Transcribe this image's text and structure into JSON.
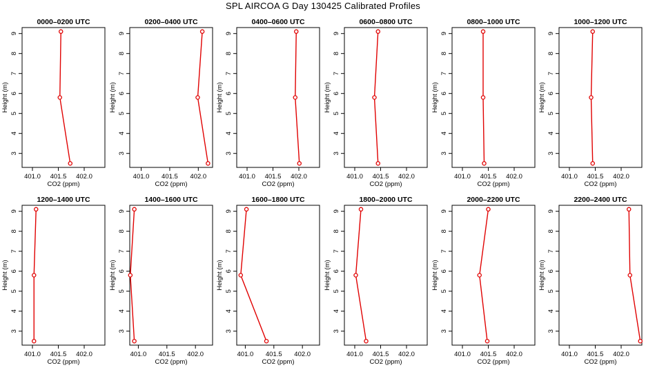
{
  "title": "SPL AIRCOA G  Day 130425  Calibrated Profiles",
  "style": {
    "line_color": "#e00000",
    "axis_color": "#000000"
  },
  "chart_data": [
    {
      "type": "line",
      "title": "0000–0200 UTC",
      "xlabel": "CO2 (ppm)",
      "ylabel": "Height (m)",
      "xlim": [
        400.8,
        402.4
      ],
      "ylim": [
        2.3,
        9.3
      ],
      "xticks": [
        "401.0",
        "401.5",
        "402.0"
      ],
      "yticks": [
        "3",
        "4",
        "5",
        "6",
        "7",
        "8",
        "9"
      ],
      "points": [
        {
          "x": 401.55,
          "y": 9.1
        },
        {
          "x": 401.53,
          "y": 5.8
        },
        {
          "x": 401.73,
          "y": 2.5
        }
      ]
    },
    {
      "type": "line",
      "title": "0200–0400 UTC",
      "xlabel": "CO2 (ppm)",
      "ylabel": "Height (m)",
      "xlim": [
        400.8,
        402.25
      ],
      "ylim": [
        2.3,
        9.3
      ],
      "xticks": [
        "401.0",
        "401.5",
        "402.0"
      ],
      "yticks": [
        "3",
        "4",
        "5",
        "6",
        "7",
        "8",
        "9"
      ],
      "points": [
        {
          "x": 402.07,
          "y": 9.1
        },
        {
          "x": 401.99,
          "y": 5.8
        },
        {
          "x": 402.17,
          "y": 2.5
        }
      ]
    },
    {
      "type": "line",
      "title": "0400–0600 UTC",
      "xlabel": "CO2 (ppm)",
      "ylabel": "Height (m)",
      "xlim": [
        400.8,
        402.4
      ],
      "ylim": [
        2.3,
        9.3
      ],
      "xticks": [
        "401.0",
        "401.5",
        "402.0"
      ],
      "yticks": [
        "3",
        "4",
        "5",
        "6",
        "7",
        "8",
        "9"
      ],
      "points": [
        {
          "x": 401.95,
          "y": 9.1
        },
        {
          "x": 401.93,
          "y": 5.8
        },
        {
          "x": 402.01,
          "y": 2.5
        }
      ]
    },
    {
      "type": "line",
      "title": "0600–0800 UTC",
      "xlabel": "CO2 (ppm)",
      "ylabel": "Height (m)",
      "xlim": [
        400.8,
        402.4
      ],
      "ylim": [
        2.3,
        9.3
      ],
      "xticks": [
        "401.0",
        "401.5",
        "402.0"
      ],
      "yticks": [
        "3",
        "4",
        "5",
        "6",
        "7",
        "8",
        "9"
      ],
      "points": [
        {
          "x": 401.45,
          "y": 9.1
        },
        {
          "x": 401.38,
          "y": 5.8
        },
        {
          "x": 401.45,
          "y": 2.5
        }
      ]
    },
    {
      "type": "line",
      "title": "0800–1000 UTC",
      "xlabel": "CO2 (ppm)",
      "ylabel": "Height (m)",
      "xlim": [
        400.8,
        402.4
      ],
      "ylim": [
        2.3,
        9.3
      ],
      "xticks": [
        "401.0",
        "401.5",
        "402.0"
      ],
      "yticks": [
        "3",
        "4",
        "5",
        "6",
        "7",
        "8",
        "9"
      ],
      "points": [
        {
          "x": 401.4,
          "y": 9.1
        },
        {
          "x": 401.4,
          "y": 5.8
        },
        {
          "x": 401.42,
          "y": 2.5
        }
      ]
    },
    {
      "type": "line",
      "title": "1000–1200 UTC",
      "xlabel": "CO2 (ppm)",
      "ylabel": "Height (m)",
      "xlim": [
        400.8,
        402.4
      ],
      "ylim": [
        2.3,
        9.3
      ],
      "xticks": [
        "401.0",
        "401.5",
        "402.0"
      ],
      "yticks": [
        "3",
        "4",
        "5",
        "6",
        "7",
        "8",
        "9"
      ],
      "points": [
        {
          "x": 401.45,
          "y": 9.1
        },
        {
          "x": 401.42,
          "y": 5.8
        },
        {
          "x": 401.45,
          "y": 2.5
        }
      ]
    },
    {
      "type": "line",
      "title": "1200–1400 UTC",
      "xlabel": "CO2 (ppm)",
      "ylabel": "Height (m)",
      "xlim": [
        400.8,
        402.4
      ],
      "ylim": [
        2.3,
        9.3
      ],
      "xticks": [
        "401.0",
        "401.5",
        "402.0"
      ],
      "yticks": [
        "3",
        "4",
        "5",
        "6",
        "7",
        "8",
        "9"
      ],
      "points": [
        {
          "x": 401.07,
          "y": 9.1
        },
        {
          "x": 401.03,
          "y": 5.8
        },
        {
          "x": 401.03,
          "y": 2.5
        }
      ]
    },
    {
      "type": "line",
      "title": "1400–1600 UTC",
      "xlabel": "CO2 (ppm)",
      "ylabel": "Height (m)",
      "xlim": [
        400.85,
        402.3
      ],
      "ylim": [
        2.3,
        9.3
      ],
      "xticks": [
        "401.0",
        "401.5",
        "402.0"
      ],
      "yticks": [
        "3",
        "4",
        "5",
        "6",
        "7",
        "8",
        "9"
      ],
      "points": [
        {
          "x": 400.93,
          "y": 9.1
        },
        {
          "x": 400.86,
          "y": 5.8
        },
        {
          "x": 400.93,
          "y": 2.5
        }
      ]
    },
    {
      "type": "line",
      "title": "1600–1800 UTC",
      "xlabel": "CO2 (ppm)",
      "ylabel": "Height (m)",
      "xlim": [
        400.85,
        402.3
      ],
      "ylim": [
        2.3,
        9.3
      ],
      "xticks": [
        "401.0",
        "401.5",
        "402.0"
      ],
      "yticks": [
        "3",
        "4",
        "5",
        "6",
        "7",
        "8",
        "9"
      ],
      "points": [
        {
          "x": 401.02,
          "y": 9.1
        },
        {
          "x": 400.92,
          "y": 5.8
        },
        {
          "x": 401.37,
          "y": 2.5
        }
      ]
    },
    {
      "type": "line",
      "title": "1800–2000 UTC",
      "xlabel": "CO2 (ppm)",
      "ylabel": "Height (m)",
      "xlim": [
        400.8,
        402.4
      ],
      "ylim": [
        2.3,
        9.3
      ],
      "xticks": [
        "401.0",
        "401.5",
        "402.0"
      ],
      "yticks": [
        "3",
        "4",
        "5",
        "6",
        "7",
        "8",
        "9"
      ],
      "points": [
        {
          "x": 401.12,
          "y": 9.1
        },
        {
          "x": 401.02,
          "y": 5.8
        },
        {
          "x": 401.22,
          "y": 2.5
        }
      ]
    },
    {
      "type": "line",
      "title": "2000–2200 UTC",
      "xlabel": "CO2 (ppm)",
      "ylabel": "Height (m)",
      "xlim": [
        400.8,
        402.4
      ],
      "ylim": [
        2.3,
        9.3
      ],
      "xticks": [
        "401.0",
        "401.5",
        "402.0"
      ],
      "yticks": [
        "3",
        "4",
        "5",
        "6",
        "7",
        "8",
        "9"
      ],
      "points": [
        {
          "x": 401.5,
          "y": 9.1
        },
        {
          "x": 401.33,
          "y": 5.8
        },
        {
          "x": 401.48,
          "y": 2.5
        }
      ]
    },
    {
      "type": "line",
      "title": "2200–2400 UTC",
      "xlabel": "CO2 (ppm)",
      "ylabel": "Height (m)",
      "xlim": [
        400.8,
        402.4
      ],
      "ylim": [
        2.3,
        9.3
      ],
      "xticks": [
        "401.0",
        "401.5",
        "402.0"
      ],
      "yticks": [
        "3",
        "4",
        "5",
        "6",
        "7",
        "8",
        "9"
      ],
      "points": [
        {
          "x": 402.15,
          "y": 9.1
        },
        {
          "x": 402.17,
          "y": 5.8
        },
        {
          "x": 402.37,
          "y": 2.5
        }
      ]
    }
  ]
}
